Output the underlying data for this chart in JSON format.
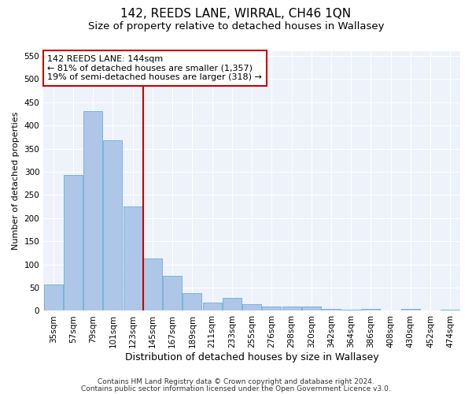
{
  "title": "142, REEDS LANE, WIRRAL, CH46 1QN",
  "subtitle": "Size of property relative to detached houses in Wallasey",
  "xlabel": "Distribution of detached houses by size in Wallasey",
  "ylabel": "Number of detached properties",
  "categories": [
    "35sqm",
    "57sqm",
    "79sqm",
    "101sqm",
    "123sqm",
    "145sqm",
    "167sqm",
    "189sqm",
    "211sqm",
    "233sqm",
    "255sqm",
    "276sqm",
    "298sqm",
    "320sqm",
    "342sqm",
    "364sqm",
    "386sqm",
    "408sqm",
    "430sqm",
    "452sqm",
    "474sqm"
  ],
  "values": [
    57,
    293,
    430,
    368,
    225,
    113,
    76,
    38,
    18,
    28,
    15,
    10,
    10,
    10,
    5,
    3,
    5,
    0,
    5,
    0,
    3
  ],
  "bar_color": "#aec6e8",
  "bar_edge_color": "#6baed6",
  "highlight_index": 5,
  "highlight_color": "#cc0000",
  "annotation_line1": "142 REEDS LANE: 144sqm",
  "annotation_line2": "← 81% of detached houses are smaller (1,357)",
  "annotation_line3": "19% of semi-detached houses are larger (318) →",
  "annotation_box_color": "#ffffff",
  "annotation_box_edge_color": "#cc0000",
  "ylim": [
    0,
    560
  ],
  "yticks": [
    0,
    50,
    100,
    150,
    200,
    250,
    300,
    350,
    400,
    450,
    500,
    550
  ],
  "background_color": "#eef2fa",
  "footer_line1": "Contains HM Land Registry data © Crown copyright and database right 2024.",
  "footer_line2": "Contains public sector information licensed under the Open Government Licence v3.0.",
  "title_fontsize": 11,
  "subtitle_fontsize": 9.5,
  "xlabel_fontsize": 9,
  "ylabel_fontsize": 8,
  "tick_fontsize": 7.5,
  "annotation_fontsize": 8,
  "footer_fontsize": 6.5
}
